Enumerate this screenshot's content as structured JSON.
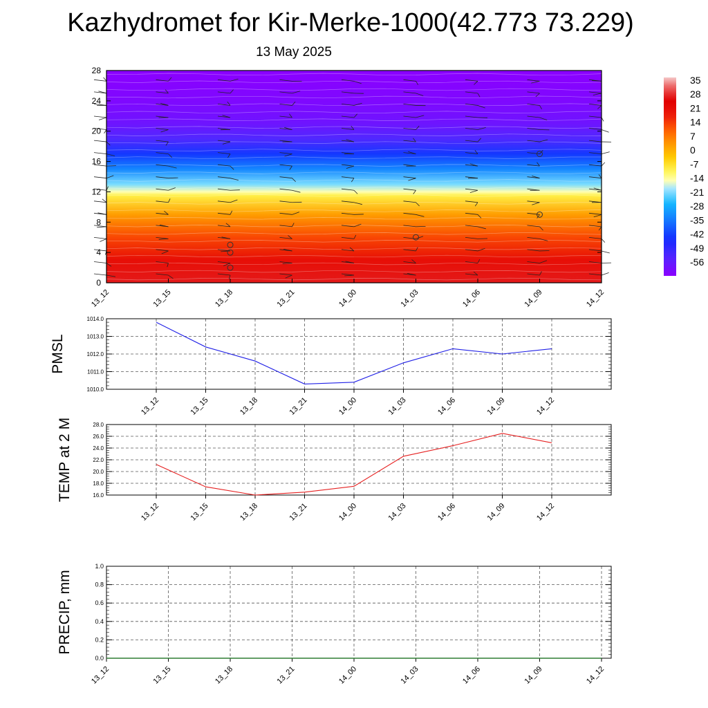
{
  "title": "Kazhydromet for Kir-Merke-1000(42.773 73.229)",
  "subtitle": "13 May 2025",
  "colors": {
    "pmsl_line": "#1f1fe6",
    "temp_line": "#e61f1f",
    "precip_line": "#2e7d32",
    "grid": "#555555"
  },
  "chart_data": [
    {
      "type": "heatmap",
      "description_key": "cross-section",
      "x_ticks": [
        "13_12",
        "13_15",
        "13_18",
        "13_21",
        "14_00",
        "14_03",
        "14_06",
        "14_09",
        "14_12"
      ],
      "y_ticks": [
        0,
        4,
        8,
        12,
        16,
        20,
        24,
        28
      ],
      "ylim": [
        0,
        28
      ],
      "colorbar": {
        "labels": [
          "35",
          "28",
          "21",
          "14",
          "7",
          "0",
          "-7",
          "-14",
          "-21",
          "-28",
          "-35",
          "-42",
          "-49",
          "-56"
        ],
        "range": [
          -60,
          40
        ]
      },
      "field_profile": [
        {
          "level": 0,
          "value": 30
        },
        {
          "level": 3,
          "value": 24
        },
        {
          "level": 6,
          "value": 16
        },
        {
          "level": 9,
          "value": 6
        },
        {
          "level": 11.5,
          "value": -6
        },
        {
          "level": 12,
          "value": -12
        },
        {
          "level": 13,
          "value": -18
        },
        {
          "level": 15,
          "value": -30
        },
        {
          "level": 17,
          "value": -40
        },
        {
          "level": 19,
          "value": -50
        },
        {
          "level": 21,
          "value": -55
        },
        {
          "level": 24,
          "value": -58
        },
        {
          "level": 28,
          "value": -60
        }
      ],
      "grid": false
    },
    {
      "type": "line",
      "ylabel": "PMSL",
      "categories": [
        "13_12",
        "13_15",
        "13_18",
        "13_21",
        "14_00",
        "14_03",
        "14_06",
        "14_09",
        "14_12"
      ],
      "values": [
        1013.8,
        1012.4,
        1011.6,
        1010.3,
        1010.4,
        1011.5,
        1012.3,
        1012.0,
        1012.3
      ],
      "ylim": [
        1010.0,
        1014.0
      ],
      "y_ticks": [
        "1010.0",
        "1011.0",
        "1012.0",
        "1013.0",
        "1014.0"
      ],
      "grid": true
    },
    {
      "type": "line",
      "ylabel": "TEMP at 2 M",
      "categories": [
        "13_12",
        "13_15",
        "13_18",
        "13_21",
        "14_00",
        "14_03",
        "14_06",
        "14_09",
        "14_12"
      ],
      "values": [
        21.2,
        17.4,
        16.0,
        16.5,
        17.5,
        22.6,
        24.4,
        26.5,
        24.9
      ],
      "ylim": [
        16.0,
        28.0
      ],
      "y_ticks": [
        "16.0",
        "18.0",
        "20.0",
        "22.0",
        "24.0",
        "26.0",
        "28.0"
      ],
      "grid": true
    },
    {
      "type": "line",
      "ylabel": "PRECIP, mm",
      "categories": [
        "13_12",
        "13_15",
        "13_18",
        "13_21",
        "14_00",
        "14_03",
        "14_06",
        "14_09",
        "14_12"
      ],
      "values": [
        0,
        0,
        0,
        0,
        0,
        0,
        0,
        0,
        0
      ],
      "ylim": [
        0.0,
        1.0
      ],
      "y_ticks": [
        "0.0",
        "0.2",
        "0.4",
        "0.6",
        "0.8",
        "1.0"
      ],
      "grid": true
    }
  ]
}
